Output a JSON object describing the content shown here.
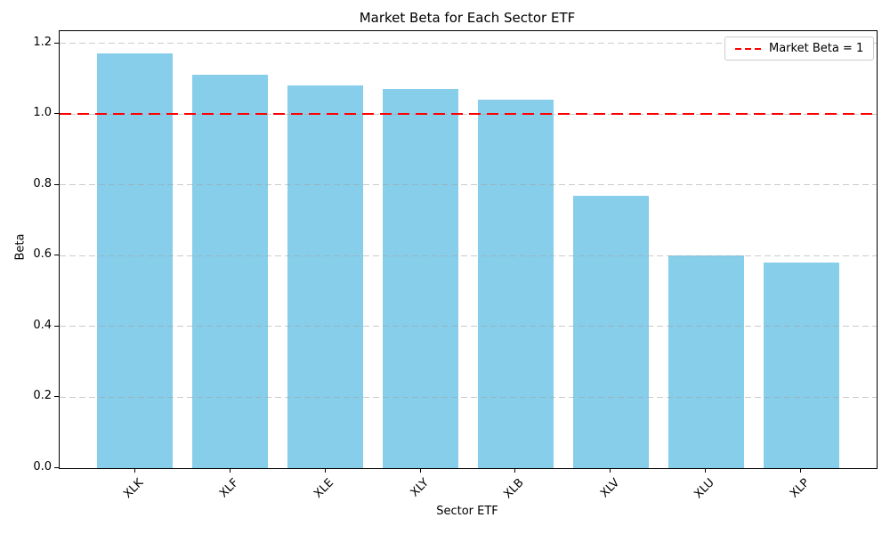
{
  "chart_data": {
    "type": "bar",
    "title": "Market Beta for Each Sector ETF",
    "xlabel": "Sector ETF",
    "ylabel": "Beta",
    "categories": [
      "XLK",
      "XLF",
      "XLE",
      "XLY",
      "XLB",
      "XLV",
      "XLU",
      "XLP"
    ],
    "values": [
      1.17,
      1.11,
      1.08,
      1.07,
      1.04,
      0.77,
      0.6,
      0.58
    ],
    "bar_color": "#87CEEB",
    "ylim": [
      0,
      1.234
    ],
    "yticks": [
      0.0,
      0.2,
      0.4,
      0.6,
      0.8,
      1.0,
      1.2
    ],
    "ytick_labels": [
      "0.0",
      "0.2",
      "0.4",
      "0.6",
      "0.8",
      "1.0",
      "1.2"
    ],
    "grid": "horizontal-dashed",
    "grid_color": "#c8c8c8",
    "reference_line": {
      "value": 1.0,
      "color": "#FF0000",
      "style": "dashed",
      "label": "Market Beta = 1"
    },
    "legend": {
      "position": "upper-right",
      "entries": [
        {
          "label": "Market Beta = 1",
          "color": "#FF0000",
          "line_style": "dashed"
        }
      ]
    }
  }
}
